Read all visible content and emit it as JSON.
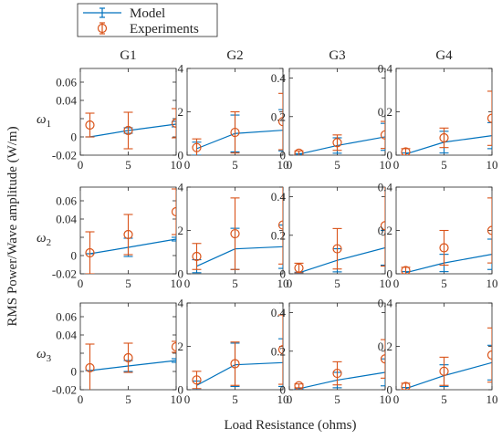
{
  "chart_data": {
    "type": "line",
    "layout": "3x4 grid of subplots",
    "xlabel": "Load Resistance (ohms)",
    "ylabel": "RMS Power/Wave amplitude (W/m)",
    "columns": [
      "G1",
      "G2",
      "G3",
      "G4"
    ],
    "rows": [
      {
        "label": "ω1",
        "sym": "ω",
        "sub": "1"
      },
      {
        "label": "ω2",
        "sym": "ω",
        "sub": "2"
      },
      {
        "label": "ω3",
        "sym": "ω",
        "sub": "3"
      }
    ],
    "legend": {
      "placement": "top-left",
      "entries": [
        {
          "name": "Model",
          "color": "#0072BD",
          "marker": "line with error bars"
        },
        {
          "name": "Experiments",
          "color": "#D95319",
          "marker": "open circle with error bars"
        }
      ]
    },
    "xlim": [
      0,
      10
    ],
    "xticks": [
      0,
      5,
      10
    ],
    "x": [
      1,
      5,
      10
    ],
    "model_color": "#0072BD",
    "exp_color": "#D95319",
    "panels": [
      [
        {
          "ylim": [
            -0.02,
            0.075
          ],
          "yticks": [
            -0.02,
            0,
            0.02,
            0.04,
            0.06
          ],
          "ytick_labels": [
            "-0.02",
            "0",
            "",
            "0.04",
            "0.06"
          ],
          "model": [
            0.0,
            0.007,
            0.014
          ],
          "model_err": [
            0.0,
            0.003,
            0.003
          ],
          "exp": [
            0.013,
            0.007,
            0.015
          ],
          "exp_err": [
            0.013,
            0.02,
            0.016
          ]
        },
        {
          "ylim": [
            0,
            4
          ],
          "yticks": [
            0,
            2,
            4
          ],
          "ytick_labels": [
            "0",
            "2",
            "4"
          ],
          "model": [
            0.3,
            1.0,
            1.15
          ],
          "model_err": [
            0.3,
            0.85,
            0.95
          ],
          "exp": [
            0.35,
            1.05,
            1.55
          ],
          "exp_err": [
            0.4,
            0.95,
            1.3
          ]
        },
        {
          "ylim": [
            0,
            0.45
          ],
          "yticks": [
            0,
            0.2,
            0.4
          ],
          "ytick_labels": [
            "0",
            "0.2",
            "0.4"
          ],
          "model": [
            0.005,
            0.05,
            0.095
          ],
          "model_err": [
            0.003,
            0.04,
            0.07
          ],
          "exp": [
            0.01,
            0.065,
            0.105
          ],
          "exp_err": [
            0.012,
            0.04,
            0.07
          ]
        },
        {
          "ylim": [
            0,
            0.4
          ],
          "yticks": [
            0,
            0.2,
            0.4
          ],
          "ytick_labels": [
            "0",
            "0.2",
            "0.4"
          ],
          "model": [
            0.005,
            0.06,
            0.09
          ],
          "model_err": [
            0.005,
            0.05,
            0.06
          ],
          "exp": [
            0.015,
            0.08,
            0.17
          ],
          "exp_err": [
            0.015,
            0.045,
            0.125
          ]
        }
      ],
      [
        {
          "ylim": [
            -0.02,
            0.075
          ],
          "yticks": [
            -0.02,
            0,
            0.02,
            0.04,
            0.06
          ],
          "ytick_labels": [
            "-0.02",
            "0",
            "",
            "0.04",
            "0.06"
          ],
          "model": [
            0.002,
            0.009,
            0.018
          ],
          "model_err": [
            0.0,
            0.01,
            0.002
          ],
          "exp": [
            0.003,
            0.023,
            0.048
          ],
          "exp_err": [
            0.023,
            0.022,
            0.025
          ]
        },
        {
          "ylim": [
            0,
            4
          ],
          "yticks": [
            0,
            2,
            4
          ],
          "ytick_labels": [
            "0",
            "2",
            "4"
          ],
          "model": [
            0.35,
            1.15,
            1.25
          ],
          "model_err": [
            0.3,
            0.95,
            1.0
          ],
          "exp": [
            0.8,
            1.85,
            2.25
          ],
          "exp_err": [
            0.6,
            1.65,
            1.8
          ]
        },
        {
          "ylim": [
            0,
            0.45
          ],
          "yticks": [
            0,
            0.2,
            0.4
          ],
          "ytick_labels": [
            "0",
            "0.2",
            "0.4"
          ],
          "model": [
            0.005,
            0.07,
            0.135
          ],
          "model_err": [
            0.003,
            0.06,
            0.09
          ],
          "exp": [
            0.03,
            0.13,
            0.25
          ],
          "exp_err": [
            0.025,
            0.105,
            0.21
          ]
        },
        {
          "ylim": [
            0,
            0.4
          ],
          "yticks": [
            0,
            0.2,
            0.4
          ],
          "ytick_labels": [
            "0",
            "0.2",
            "0.4"
          ],
          "model": [
            0.005,
            0.05,
            0.09
          ],
          "model_err": [
            0.005,
            0.04,
            0.07
          ],
          "exp": [
            0.015,
            0.12,
            0.2
          ],
          "exp_err": [
            0.015,
            0.08,
            0.15
          ]
        }
      ],
      [
        {
          "ylim": [
            -0.02,
            0.075
          ],
          "yticks": [
            -0.02,
            0,
            0.02,
            0.04,
            0.06
          ],
          "ytick_labels": [
            "-0.02",
            "0",
            "",
            "0.04",
            "0.06"
          ],
          "model": [
            0.001,
            0.006,
            0.012
          ],
          "model_err": [
            0.0,
            0.006,
            0.002
          ],
          "exp": [
            0.004,
            0.015,
            0.027
          ],
          "exp_err": [
            0.026,
            0.016,
            0.006
          ]
        },
        {
          "ylim": [
            0,
            4
          ],
          "yticks": [
            0,
            2,
            4
          ],
          "ytick_labels": [
            "0",
            "2",
            "4"
          ],
          "model": [
            0.2,
            1.15,
            1.25
          ],
          "model_err": [
            0.2,
            1.0,
            1.1
          ],
          "exp": [
            0.45,
            1.2,
            1.85
          ],
          "exp_err": [
            0.4,
            1.0,
            1.6
          ]
        },
        {
          "ylim": [
            0,
            0.45
          ],
          "yticks": [
            0,
            0.2,
            0.4
          ],
          "ytick_labels": [
            "0",
            "0.2",
            "0.4"
          ],
          "model": [
            0.005,
            0.05,
            0.09
          ],
          "model_err": [
            0.003,
            0.04,
            0.07
          ],
          "exp": [
            0.02,
            0.085,
            0.16
          ],
          "exp_err": [
            0.01,
            0.06,
            0.1
          ]
        },
        {
          "ylim": [
            0,
            0.4
          ],
          "yticks": [
            0,
            0.2,
            0.4
          ],
          "ytick_labels": [
            "0",
            "0.2",
            "0.4"
          ],
          "model": [
            0.005,
            0.065,
            0.125
          ],
          "model_err": [
            0.005,
            0.05,
            0.08
          ],
          "exp": [
            0.015,
            0.085,
            0.16
          ],
          "exp_err": [
            0.015,
            0.065,
            0.125
          ]
        }
      ]
    ]
  }
}
